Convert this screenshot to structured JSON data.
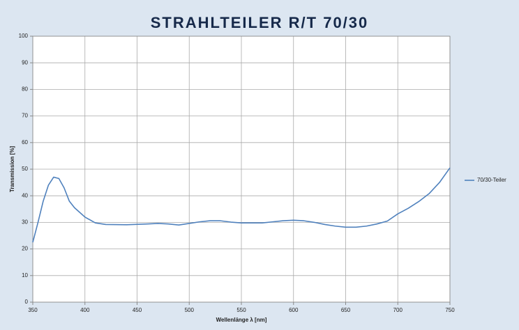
{
  "chart_data": {
    "type": "line",
    "title": "STRAHLTEILER R/T  70/30",
    "x_label": "Wellenlänge λ [nm]",
    "y_label": "Transmission [%]",
    "x": [
      350,
      355,
      360,
      365,
      370,
      375,
      380,
      385,
      390,
      400,
      410,
      420,
      440,
      460,
      470,
      480,
      490,
      500,
      510,
      520,
      530,
      540,
      550,
      570,
      580,
      590,
      600,
      610,
      620,
      630,
      640,
      650,
      660,
      670,
      680,
      690,
      700,
      710,
      720,
      730,
      740,
      750
    ],
    "series": [
      {
        "name": "70/30-Teiler",
        "color": "#4f81bd",
        "values": [
          22.5,
          30,
          38,
          44,
          47,
          46.5,
          43,
          38,
          35.5,
          32,
          29.8,
          29.2,
          29.1,
          29.4,
          29.6,
          29.4,
          29,
          29.6,
          30.2,
          30.6,
          30.6,
          30.1,
          29.8,
          29.8,
          30.2,
          30.6,
          30.8,
          30.6,
          30,
          29.2,
          28.6,
          28.2,
          28.2,
          28.6,
          29.4,
          30.5,
          33.2,
          35.3,
          37.8,
          40.8,
          45,
          50.5
        ]
      }
    ],
    "xlim": [
      350,
      750
    ],
    "xticks": [
      350,
      400,
      450,
      500,
      550,
      600,
      650,
      700,
      750
    ],
    "ylim": [
      0,
      100
    ],
    "yticks": [
      0,
      10,
      20,
      30,
      40,
      50,
      60,
      70,
      80,
      90,
      100
    ],
    "grid": true,
    "legend": "right"
  }
}
